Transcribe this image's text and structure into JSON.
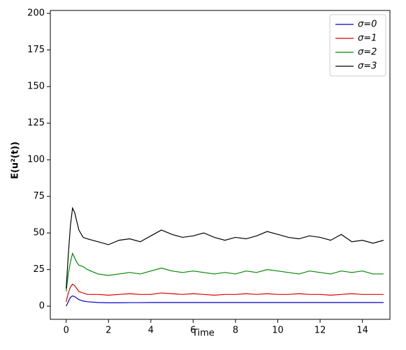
{
  "chart_data": {
    "type": "line",
    "xlabel": "Time",
    "ylabel": "E(u²(t))",
    "x": [
      0,
      0.1,
      0.2,
      0.3,
      0.4,
      0.5,
      0.6,
      0.8,
      1,
      1.5,
      2,
      2.5,
      3,
      3.5,
      4,
      4.5,
      5,
      5.5,
      6,
      6.5,
      7,
      7.5,
      8,
      8.5,
      9,
      9.5,
      10,
      10.5,
      11,
      11.5,
      12,
      12.5,
      13,
      13.5,
      14,
      14.5,
      15
    ],
    "series": [
      {
        "name": "σ=0",
        "color": "#0000cc",
        "values": [
          0,
          3,
          6,
          7,
          6.5,
          5.5,
          4.5,
          3.5,
          3,
          2.5,
          2.3,
          2.3,
          2.4,
          2.4,
          2.5,
          2.5,
          2.5,
          2.5,
          2.5,
          2.5,
          2.5,
          2.5,
          2.5,
          2.5,
          2.5,
          2.5,
          2.5,
          2.5,
          2.5,
          2.5,
          2.5,
          2.5,
          2.5,
          2.5,
          2.5,
          2.5,
          2.5
        ]
      },
      {
        "name": "σ=1",
        "color": "#dd0000",
        "values": [
          3,
          9,
          13,
          15,
          14,
          12,
          10,
          9,
          8,
          8,
          7.5,
          8,
          8.5,
          8,
          8,
          9,
          8.5,
          8,
          8.5,
          8,
          7.5,
          8,
          8,
          8.5,
          8,
          8.5,
          8,
          8,
          8.5,
          8,
          8,
          7.5,
          8,
          8.5,
          8,
          8,
          8
        ]
      },
      {
        "name": "σ=2",
        "color": "#008800",
        "values": [
          10,
          22,
          30,
          36,
          33,
          30,
          28,
          27,
          25,
          22,
          21,
          22,
          23,
          22,
          24,
          26,
          24,
          23,
          24,
          23,
          22,
          23,
          22,
          24,
          23,
          25,
          24,
          23,
          22,
          24,
          23,
          22,
          24,
          23,
          24,
          22,
          22
        ]
      },
      {
        "name": "σ=3",
        "color": "#000000",
        "values": [
          12,
          35,
          55,
          67,
          64,
          58,
          52,
          47,
          46,
          44,
          42,
          45,
          46,
          44,
          48,
          52,
          49,
          47,
          48,
          50,
          47,
          45,
          47,
          46,
          48,
          51,
          49,
          47,
          46,
          48,
          47,
          45,
          49,
          44,
          45,
          43,
          45
        ]
      }
    ],
    "xlim": [
      -0.75,
      15.3
    ],
    "ylim": [
      -9,
      202
    ],
    "xticks": [
      0,
      2,
      4,
      6,
      8,
      10,
      12,
      14
    ],
    "yticks": [
      0,
      25,
      50,
      75,
      100,
      125,
      150,
      175,
      200
    ],
    "legend": "upper right"
  }
}
